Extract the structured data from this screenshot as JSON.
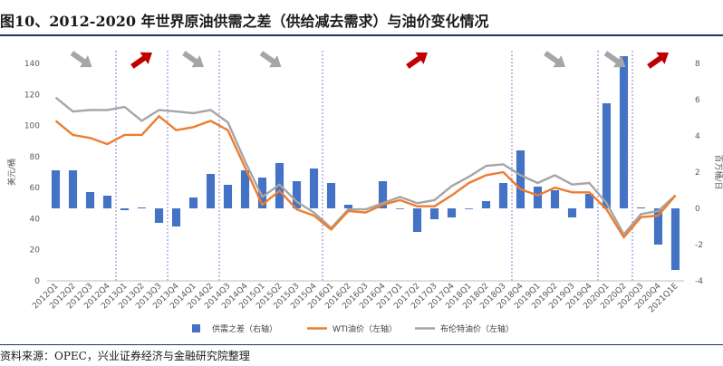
{
  "title": "图10、2012-2020 年世界原油供需之差（供给减去需求）与油价变化情况",
  "source": "资料来源：OPEC，兴业证券经济与金融研究院整理",
  "colors": {
    "bar": "#4472c4",
    "wti": "#ed7d31",
    "brent": "#a5a5a5",
    "arrow_down": "#a6a6a6",
    "arrow_up": "#c00000",
    "divider": "#7f7fd5"
  },
  "chart_data": {
    "type": "bar+line",
    "categories": [
      "2012Q1",
      "2012Q2",
      "2012Q3",
      "2012Q4",
      "2013Q1",
      "2013Q2",
      "2013Q3",
      "2013Q4",
      "2014Q1",
      "2014Q2",
      "2014Q3",
      "2014Q4",
      "2015Q1",
      "2015Q2",
      "2015Q3",
      "2015Q4",
      "2016Q1",
      "2016Q2",
      "2016Q3",
      "2016Q4",
      "2017Q1",
      "2017Q2",
      "2017Q3",
      "2017Q4",
      "2018Q1",
      "2018Q2",
      "2018Q3",
      "2018Q4",
      "2019Q1",
      "2019Q2",
      "2019Q3",
      "2019Q4",
      "2020Q1",
      "2020Q2",
      "2020Q3",
      "2020Q4",
      "2021Q1E"
    ],
    "x_tick_labels": [
      "2012Q1",
      "2012Q2",
      "2012Q3",
      "2012Q4",
      "2013Q1",
      "2013Q2",
      "2013Q3",
      "2013Q4",
      "2014Q1",
      "2014Q2",
      "2014Q3",
      "2014Q4",
      "2015Q1",
      "2015Q2",
      "2015Q3",
      "2015Q4",
      "2016Q1",
      "2016Q2",
      "2016Q3",
      "2016Q4",
      "2017Q1",
      "2017Q2",
      "2017Q3",
      "2017Q4",
      "2018Q1",
      "2018Q2",
      "2018Q3",
      "2018Q4",
      "2019Q1",
      "2019Q2",
      "2019Q3",
      "2019Q4",
      "2020Q1",
      "2020Q2",
      "2020Q3",
      "2020Q4",
      "2021Q1E"
    ],
    "series": [
      {
        "name": "供需之差（右轴）",
        "type": "bar",
        "axis": "right",
        "values": [
          2.1,
          2.1,
          0.9,
          0.7,
          -0.1,
          0.05,
          -0.8,
          -1.0,
          0.6,
          1.9,
          1.3,
          2.1,
          1.7,
          2.5,
          1.5,
          2.2,
          1.4,
          0.2,
          0.0,
          1.5,
          0.0,
          -1.3,
          -0.6,
          -0.5,
          0.0,
          0.4,
          1.4,
          3.2,
          1.2,
          1.0,
          -0.5,
          0.8,
          5.8,
          8.4,
          0.05,
          -2.0,
          -3.4
        ]
      },
      {
        "name": "WTI油价（左轴）",
        "type": "line",
        "axis": "left",
        "values": [
          103,
          94,
          92,
          88,
          94,
          94,
          106,
          97,
          99,
          103,
          97,
          73,
          49,
          58,
          46,
          42,
          33,
          45,
          44,
          49,
          52,
          48,
          48,
          55,
          63,
          68,
          70,
          59,
          55,
          60,
          57,
          57,
          46,
          28,
          41,
          42,
          55
        ]
      },
      {
        "name": "布伦特油价（左轴）",
        "type": "line",
        "axis": "left",
        "values": [
          118,
          109,
          110,
          110,
          112,
          103,
          110,
          109,
          108,
          110,
          102,
          77,
          54,
          62,
          51,
          44,
          34,
          46,
          46,
          50,
          54,
          50,
          52,
          61,
          67,
          74,
          75,
          68,
          63,
          68,
          62,
          63,
          50,
          30,
          43,
          45,
          55
        ]
      }
    ],
    "left_axis": {
      "label": "美元/桶",
      "min": 0,
      "max": 140,
      "ticks": [
        0,
        20,
        40,
        60,
        80,
        100,
        120,
        140
      ]
    },
    "right_axis": {
      "label": "百万桶/日",
      "min": -4,
      "max": 8,
      "ticks": [
        -4,
        -2,
        0,
        2,
        4,
        6,
        8
      ]
    },
    "dividers_after": [
      "2012Q4",
      "2013Q3",
      "2014Q2",
      "2015Q4",
      "2018Q3",
      "2019Q4",
      "2020Q2"
    ],
    "trend_arrows": [
      {
        "between": [
          "2012Q1",
          "2012Q4"
        ],
        "direction": "down"
      },
      {
        "between": [
          "2013Q1",
          "2013Q3"
        ],
        "direction": "up"
      },
      {
        "between": [
          "2013Q4",
          "2014Q2"
        ],
        "direction": "down"
      },
      {
        "between": [
          "2014Q3",
          "2015Q4"
        ],
        "direction": "down"
      },
      {
        "between": [
          "2016Q1",
          "2018Q3"
        ],
        "direction": "up"
      },
      {
        "between": [
          "2018Q4",
          "2019Q4"
        ],
        "direction": "down"
      },
      {
        "between": [
          "2020Q1",
          "2020Q2"
        ],
        "direction": "down"
      },
      {
        "between": [
          "2020Q3",
          "2021Q1E"
        ],
        "direction": "up"
      }
    ],
    "grid": false,
    "legend_position": "bottom"
  }
}
